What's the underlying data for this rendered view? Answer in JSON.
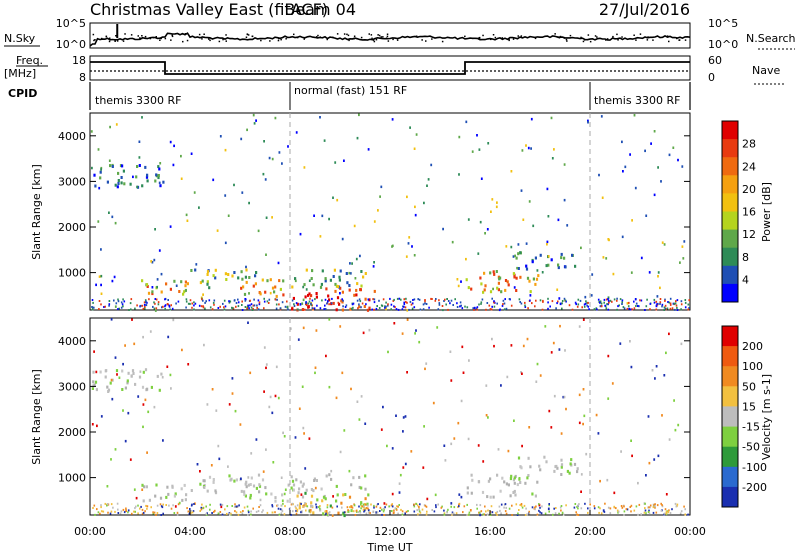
{
  "chart_data": {
    "type": "heatmap",
    "title": "Christmas Valley East (fitACF)",
    "beam_label": "Beam 04",
    "date": "27/Jul/2016",
    "xlabel": "Time UT",
    "x_ticks": [
      "00:00",
      "04:00",
      "08:00",
      "12:00",
      "16:00",
      "20:00",
      "00:00"
    ],
    "xlim_hours": [
      0,
      24
    ],
    "summary_panels": {
      "noise": {
        "left_label": "N.Sky",
        "right_label": "N.Search",
        "left_ticks": [
          "10^5",
          "10^0"
        ],
        "right_ticks": [
          "10^5",
          "10^0"
        ]
      },
      "frequency": {
        "left_label_top": "Freq.",
        "left_label_bottom": "[MHz]",
        "right_label": "Nave",
        "left_ticks": [
          "18",
          "8"
        ],
        "right_ticks": [
          "60",
          "0"
        ],
        "freq_steps": [
          {
            "start_h": 0,
            "end_h": 3,
            "level": "high"
          },
          {
            "start_h": 3,
            "end_h": 15,
            "level": "low"
          },
          {
            "start_h": 15,
            "end_h": 24,
            "level": "high"
          }
        ]
      },
      "cpid": {
        "label": "CPID",
        "segments": [
          {
            "name": "themis 3300 RF",
            "start_h": 0,
            "end_h": 8
          },
          {
            "name": "normal (fast) 151 RF",
            "start_h": 8,
            "end_h": 20
          },
          {
            "name": "themis 3300 RF",
            "start_h": 20,
            "end_h": 24
          }
        ]
      }
    },
    "panels": [
      {
        "name": "power",
        "ylabel": "Slant Range [km]",
        "ylim": [
          180,
          4500
        ],
        "y_ticks": [
          "1000",
          "2000",
          "3000",
          "4000"
        ],
        "colorbar_label": "Power [dB]",
        "colorbar_ticks": [
          "4",
          "8",
          "12",
          "16",
          "20",
          "24",
          "28"
        ],
        "colorbar_colors": [
          "#0000ff",
          "#1f4fb4",
          "#2e8b57",
          "#5fa84a",
          "#b5d41f",
          "#f2c010",
          "#f5a010",
          "#ef6a10",
          "#e83a10",
          "#e00000"
        ]
      },
      {
        "name": "velocity",
        "ylabel": "Slant Range [km]",
        "ylim": [
          180,
          4500
        ],
        "y_ticks": [
          "1000",
          "2000",
          "3000",
          "4000"
        ],
        "colorbar_label": "Velocity [m s-1]",
        "colorbar_ticks": [
          "200",
          "100",
          "50",
          "15",
          "-15",
          "-50",
          "-100",
          "-200"
        ],
        "colorbar_colors": [
          "#1a2fb0",
          "#2a6ad0",
          "#2e9a3a",
          "#7ed040",
          "#bdbdbd",
          "#f2c040",
          "#f08a20",
          "#ef5a10",
          "#e00000"
        ]
      }
    ],
    "scatter_regions": [
      {
        "t0": 2.0,
        "t1": 4.0,
        "r0": 500,
        "r1": 900,
        "power_level": "high",
        "velocity_level": "near-zero"
      },
      {
        "t0": 4.0,
        "t1": 5.0,
        "r0": 600,
        "r1": 1100,
        "power_level": "medium",
        "velocity_level": "near-zero"
      },
      {
        "t0": 5.3,
        "t1": 7.0,
        "r0": 800,
        "r1": 1100,
        "power_level": "medium",
        "velocity_level": "near-zero"
      },
      {
        "t0": 6.0,
        "t1": 8.0,
        "r0": 500,
        "r1": 900,
        "power_level": "high",
        "velocity_level": "near-zero"
      },
      {
        "t0": 8.0,
        "t1": 11.5,
        "r0": 200,
        "r1": 700,
        "power_level": "very-high",
        "velocity_level": "small-negative"
      },
      {
        "t0": 8.0,
        "t1": 11.0,
        "r0": 700,
        "r1": 1100,
        "power_level": "medium",
        "velocity_level": "near-zero"
      },
      {
        "t0": 15.0,
        "t1": 18.0,
        "r0": 600,
        "r1": 1100,
        "power_level": "high",
        "velocity_level": "near-zero"
      },
      {
        "t0": 0.0,
        "t1": 3.0,
        "r0": 2900,
        "r1": 3400,
        "power_level": "low",
        "velocity_level": "near-zero"
      },
      {
        "t0": 17.0,
        "t1": 19.5,
        "r0": 1100,
        "r1": 1500,
        "power_level": "low",
        "velocity_level": "near-zero"
      }
    ]
  }
}
